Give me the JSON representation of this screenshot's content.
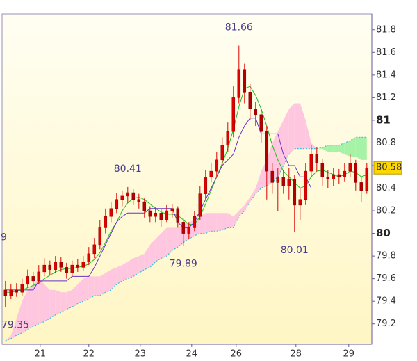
{
  "chart_data": {
    "type": "candlestick",
    "open": [
      79.5,
      79.45,
      79.5,
      79.48,
      79.55,
      79.62,
      79.58,
      79.66,
      79.72,
      79.68,
      79.75,
      79.7,
      79.65,
      79.72,
      79.7,
      79.75,
      79.82,
      79.9,
      80.05,
      80.15,
      80.22,
      80.3,
      80.33,
      80.36,
      80.3,
      80.28,
      80.2,
      80.15,
      80.18,
      80.12,
      80.2,
      80.22,
      80.1,
      80.0,
      80.05,
      80.15,
      80.35,
      80.5,
      80.55,
      80.65,
      80.78,
      80.9,
      81.2,
      81.45,
      81.25,
      81.1,
      81.05,
      80.9,
      80.55,
      80.45,
      80.5,
      80.42,
      80.48,
      80.25,
      80.3,
      80.55,
      80.7,
      80.62,
      80.5,
      80.48,
      80.52,
      80.5,
      80.55,
      80.62,
      80.45,
      80.38
    ],
    "high": [
      79.58,
      79.55,
      79.56,
      79.6,
      79.68,
      79.66,
      79.72,
      79.78,
      79.76,
      79.8,
      79.79,
      79.74,
      79.76,
      79.77,
      79.8,
      79.88,
      79.96,
      80.12,
      80.22,
      80.28,
      80.36,
      80.38,
      80.41,
      80.39,
      80.35,
      80.31,
      80.24,
      80.23,
      80.22,
      80.25,
      80.26,
      80.24,
      80.13,
      80.1,
      80.2,
      80.42,
      80.56,
      80.62,
      80.72,
      80.85,
      80.98,
      81.3,
      81.66,
      81.5,
      81.32,
      81.16,
      81.1,
      80.95,
      80.62,
      80.58,
      80.56,
      80.58,
      80.52,
      80.4,
      80.62,
      80.78,
      80.76,
      80.66,
      80.56,
      80.58,
      80.57,
      80.62,
      80.7,
      80.65,
      80.5,
      80.62
    ],
    "low": [
      79.35,
      79.42,
      79.44,
      79.45,
      79.52,
      79.54,
      79.55,
      79.62,
      79.63,
      79.65,
      79.66,
      79.6,
      79.62,
      79.66,
      79.67,
      79.72,
      79.78,
      79.86,
      80.0,
      80.1,
      80.18,
      80.24,
      80.27,
      80.25,
      80.22,
      80.14,
      80.1,
      80.1,
      80.06,
      80.1,
      80.14,
      80.05,
      79.89,
      79.95,
      80.02,
      80.12,
      80.3,
      80.45,
      80.5,
      80.6,
      80.72,
      80.85,
      81.15,
      81.15,
      81.0,
      80.95,
      80.8,
      80.3,
      80.35,
      80.2,
      80.35,
      80.3,
      80.01,
      80.12,
      80.25,
      80.5,
      80.55,
      80.42,
      80.4,
      80.42,
      80.44,
      80.46,
      80.5,
      80.38,
      80.28,
      80.35
    ],
    "close": [
      79.45,
      79.5,
      79.48,
      79.55,
      79.62,
      79.58,
      79.66,
      79.72,
      79.68,
      79.75,
      79.7,
      79.65,
      79.72,
      79.7,
      79.75,
      79.82,
      79.9,
      80.05,
      80.15,
      80.22,
      80.3,
      80.33,
      80.36,
      80.3,
      80.28,
      80.2,
      80.15,
      80.18,
      80.12,
      80.2,
      80.22,
      80.1,
      80.0,
      80.05,
      80.15,
      80.35,
      80.5,
      80.55,
      80.65,
      80.78,
      80.9,
      81.2,
      81.45,
      81.25,
      81.1,
      81.05,
      80.9,
      80.55,
      80.45,
      80.5,
      80.42,
      80.48,
      80.25,
      80.3,
      80.55,
      80.7,
      80.62,
      80.5,
      80.48,
      80.52,
      80.5,
      80.55,
      80.62,
      80.45,
      80.38,
      80.58
    ],
    "candle_color": "#e00000",
    "lines": [
      {
        "color": "#22bb22",
        "values": [
          79.48,
          79.48,
          79.49,
          79.5,
          79.52,
          79.54,
          79.56,
          79.6,
          79.63,
          79.66,
          79.68,
          79.69,
          79.69,
          79.7,
          79.71,
          79.73,
          79.77,
          79.83,
          79.92,
          80.02,
          80.1,
          80.2,
          80.27,
          80.31,
          80.32,
          80.3,
          80.26,
          80.22,
          80.19,
          80.17,
          80.17,
          80.16,
          80.12,
          80.08,
          80.08,
          80.15,
          80.26,
          80.38,
          80.5,
          80.62,
          80.75,
          80.92,
          81.12,
          81.28,
          81.3,
          81.22,
          81.1,
          80.95,
          80.78,
          80.65,
          80.55,
          80.5,
          80.45,
          80.4,
          80.42,
          80.5,
          80.55,
          80.56,
          80.54,
          80.52,
          80.5,
          80.52,
          80.55,
          80.54,
          80.5,
          80.52
        ]
      },
      {
        "color": "#6633cc",
        "values": [
          79.5,
          79.5,
          79.5,
          79.5,
          79.5,
          79.5,
          79.58,
          79.58,
          79.58,
          79.58,
          79.58,
          79.58,
          79.62,
          79.62,
          79.62,
          79.62,
          79.7,
          79.8,
          79.9,
          80.0,
          80.1,
          80.15,
          80.18,
          80.18,
          80.18,
          80.18,
          80.22,
          80.22,
          80.22,
          80.22,
          80.22,
          80.1,
          80.05,
          80.05,
          80.1,
          80.2,
          80.3,
          80.4,
          80.5,
          80.6,
          80.65,
          80.7,
          80.85,
          80.95,
          81.02,
          81.02,
          80.88,
          80.88,
          80.88,
          80.88,
          80.7,
          80.6,
          80.6,
          80.5,
          80.5,
          80.4,
          80.4,
          80.4,
          80.4,
          80.4,
          80.4,
          80.4,
          80.4,
          80.4,
          80.4,
          80.4
        ]
      }
    ],
    "span_a": [
      79.05,
      79.07,
      79.1,
      79.12,
      79.15,
      79.18,
      79.2,
      79.22,
      79.25,
      79.28,
      79.3,
      79.33,
      79.35,
      79.38,
      79.4,
      79.42,
      79.45,
      79.45,
      79.48,
      79.5,
      79.55,
      79.58,
      79.6,
      79.62,
      79.65,
      79.68,
      79.7,
      79.75,
      79.78,
      79.8,
      79.85,
      79.88,
      79.92,
      79.95,
      79.98,
      80.0,
      80.0,
      80.02,
      80.02,
      80.03,
      80.05,
      80.05,
      80.15,
      80.2,
      80.28,
      80.35,
      80.4,
      80.42,
      80.45,
      80.5,
      80.6,
      80.7,
      80.75,
      80.75,
      80.75,
      80.75,
      80.75,
      80.76,
      80.78,
      80.78,
      80.78,
      80.8,
      80.82,
      80.85,
      80.85,
      80.85
    ],
    "span_b": [
      79.05,
      79.1,
      79.25,
      79.4,
      79.5,
      79.55,
      79.6,
      79.55,
      79.5,
      79.5,
      79.48,
      79.48,
      79.5,
      79.55,
      79.6,
      79.62,
      79.62,
      79.62,
      79.65,
      79.68,
      79.7,
      79.72,
      79.75,
      79.78,
      79.8,
      79.82,
      79.9,
      79.95,
      80.0,
      80.05,
      80.05,
      80.05,
      80.08,
      80.1,
      80.12,
      80.15,
      80.18,
      80.18,
      80.18,
      80.18,
      80.18,
      80.15,
      80.2,
      80.25,
      80.32,
      80.4,
      80.55,
      80.65,
      80.8,
      80.9,
      81.0,
      81.1,
      81.15,
      81.15,
      81.0,
      80.8,
      80.75,
      80.75,
      80.72,
      80.72,
      80.72,
      80.7,
      80.68,
      80.68,
      80.65,
      80.65
    ],
    "span_a_color": "#3cc0d8",
    "cloud_up_color": "#a6f2a6",
    "cloud_down_color": "#ffc6df",
    "annotations": [
      "9"
    ],
    "xlim": [
      -0.6,
      65.9
    ],
    "xticks": [
      {
        "value": 6.25,
        "label": "21"
      },
      {
        "value": 15,
        "label": "22"
      },
      {
        "value": 24.25,
        "label": "23"
      },
      {
        "value": 33.5,
        "label": "24"
      },
      {
        "value": 41.5,
        "label": "26"
      },
      {
        "value": 52.25,
        "label": "28"
      },
      {
        "value": 61.75,
        "label": "29"
      }
    ],
    "ylim": [
      79.02,
      81.94
    ],
    "yticks": [
      79.2,
      79.4,
      79.6,
      79.8,
      80,
      80.2,
      80.4,
      80.6,
      80.8,
      81,
      81.2,
      81.4,
      81.6,
      81.8
    ],
    "last_price_color": "#ffd700"
  }
}
